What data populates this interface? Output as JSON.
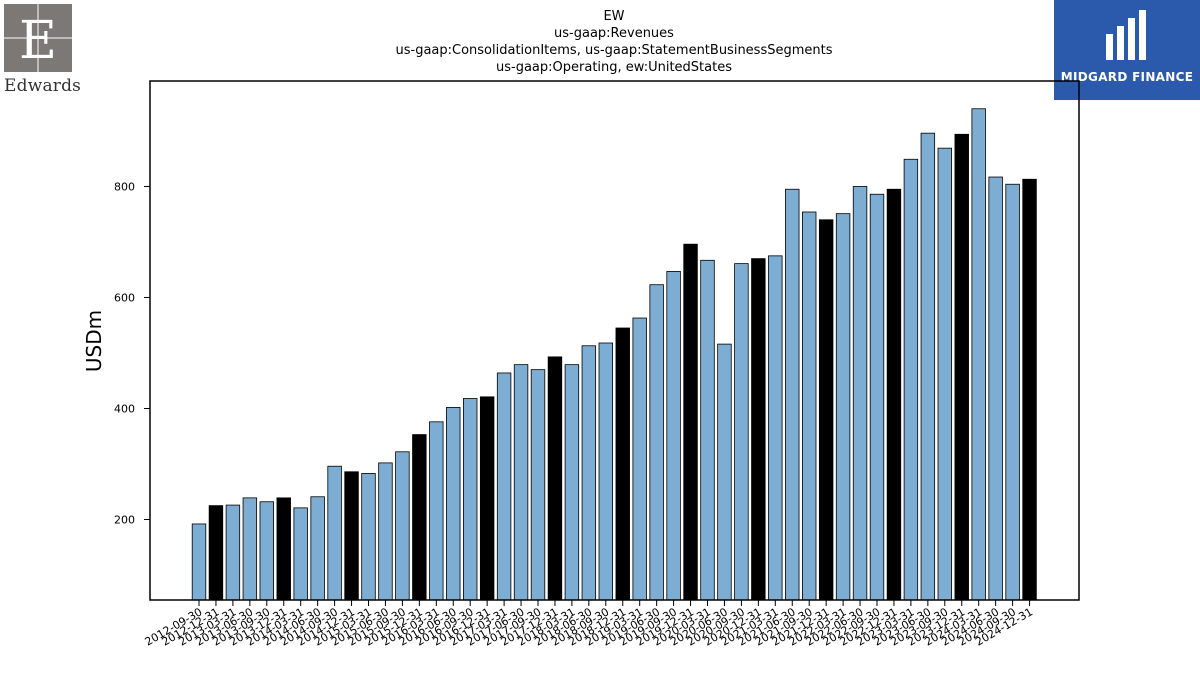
{
  "brand": {
    "left_logo_text": "Edwards",
    "right_logo_text": "MIDGARD FINANCE"
  },
  "chart_data": {
    "type": "bar",
    "title_lines": [
      "EW",
      "us-gaap:Revenues",
      "us-gaap:ConsolidationItems, us-gaap:StatementBusinessSegments",
      "us-gaap:Operating, ew:UnitedStates"
    ],
    "ylabel": "USDm",
    "xlabel": "",
    "ylim": [
      55,
      990
    ],
    "yticks": [
      200,
      400,
      600,
      800
    ],
    "grid": false,
    "colors": {
      "quarter": "#7eadd3",
      "year_end": "#000000",
      "edge": "#000000"
    },
    "categories": [
      "2012-09-30",
      "2012-12-31",
      "2013-03-31",
      "2013-06-30",
      "2013-09-30",
      "2013-12-31",
      "2014-03-31",
      "2014-06-30",
      "2014-09-30",
      "2014-12-31",
      "2015-03-31",
      "2015-06-30",
      "2015-09-30",
      "2015-12-31",
      "2016-03-31",
      "2016-06-30",
      "2016-09-30",
      "2016-12-31",
      "2017-03-31",
      "2017-06-30",
      "2017-09-30",
      "2017-12-31",
      "2018-03-31",
      "2018-06-30",
      "2018-09-30",
      "2018-12-31",
      "2019-03-31",
      "2019-06-30",
      "2019-09-30",
      "2019-12-31",
      "2020-03-31",
      "2020-06-30",
      "2020-09-30",
      "2020-12-31",
      "2021-03-31",
      "2021-06-30",
      "2021-09-30",
      "2021-12-31",
      "2022-03-31",
      "2022-06-30",
      "2022-09-30",
      "2022-12-31",
      "2023-03-31",
      "2023-06-30",
      "2023-09-30",
      "2023-12-31",
      "2024-03-31",
      "2024-06-30",
      "2024-09-30",
      "2024-12-31"
    ],
    "values": [
      192,
      225,
      226,
      239,
      232,
      239,
      221,
      241,
      296,
      286,
      283,
      302,
      322,
      353,
      376,
      402,
      418,
      421,
      464,
      479,
      470,
      493,
      479,
      513,
      518,
      545,
      563,
      623,
      647,
      696,
      667,
      516,
      661,
      670,
      675,
      795,
      754,
      740,
      751,
      800,
      786,
      795,
      849,
      896,
      869,
      894,
      940,
      817,
      804,
      813
    ],
    "year_end": [
      false,
      true,
      false,
      false,
      false,
      true,
      false,
      false,
      false,
      true,
      false,
      false,
      false,
      true,
      false,
      false,
      false,
      true,
      false,
      false,
      false,
      true,
      false,
      false,
      false,
      true,
      false,
      false,
      false,
      true,
      false,
      false,
      false,
      true,
      false,
      false,
      false,
      true,
      false,
      false,
      false,
      true,
      false,
      false,
      false,
      true,
      false,
      false,
      false,
      true
    ]
  }
}
